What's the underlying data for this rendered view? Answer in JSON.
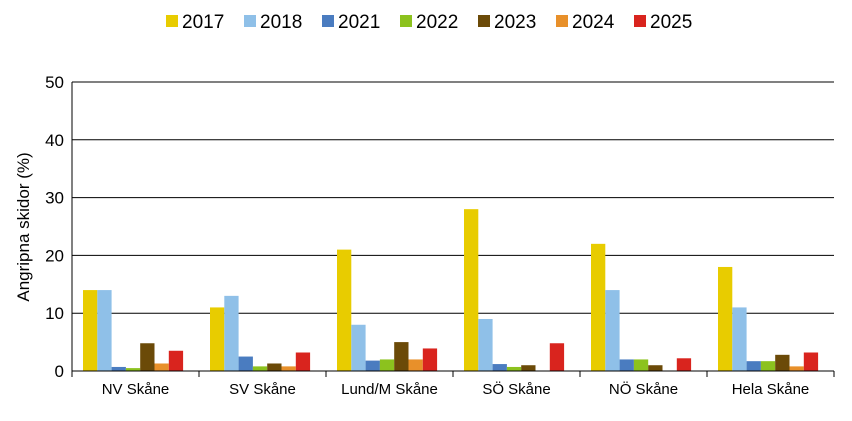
{
  "chart_data": {
    "type": "bar",
    "title": "",
    "xlabel": "",
    "ylabel": "Angripna skidor (%)",
    "ylim": [
      0,
      50
    ],
    "yticks": [
      0,
      10,
      20,
      30,
      40,
      50
    ],
    "grid": true,
    "legend_position": "top",
    "categories": [
      "NV Skåne",
      "SV Skåne",
      "Lund/M Skåne",
      "SÖ Skåne",
      "NÖ Skåne",
      "Hela Skåne"
    ],
    "series": [
      {
        "name": "2017",
        "color": "#e8cc00",
        "values": [
          14,
          11,
          21,
          28,
          22,
          18
        ]
      },
      {
        "name": "2018",
        "color": "#8fc0e8",
        "values": [
          14,
          13,
          8,
          9,
          14,
          11
        ]
      },
      {
        "name": "2021",
        "color": "#4a7cc0",
        "values": [
          0.7,
          2.5,
          1.8,
          1.2,
          2,
          1.7
        ]
      },
      {
        "name": "2022",
        "color": "#8cc21e",
        "values": [
          0.5,
          0.8,
          2,
          0.7,
          2,
          1.7
        ]
      },
      {
        "name": "2023",
        "color": "#6b4a08",
        "values": [
          4.8,
          1.3,
          5,
          1,
          1,
          2.8
        ]
      },
      {
        "name": "2024",
        "color": "#e8902a",
        "values": [
          1.3,
          0.8,
          2,
          0,
          0,
          0.8
        ]
      },
      {
        "name": "2025",
        "color": "#d9241e",
        "values": [
          3.5,
          3.2,
          3.9,
          4.8,
          2.2,
          3.2
        ]
      }
    ]
  }
}
